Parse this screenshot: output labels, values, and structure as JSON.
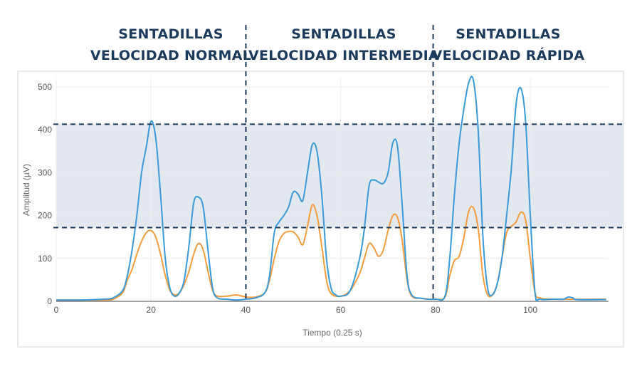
{
  "chart_data": {
    "type": "line",
    "headers": [
      [
        "SENTADILLAS",
        "VELOCIDAD NORMAL"
      ],
      [
        "SENTADILLAS",
        "VELOCIDAD INTERMEDIA"
      ],
      [
        "SENTADILLAS",
        "VELOCIDAD RÁPIDA"
      ]
    ],
    "x_label": "Tiempo (0.25 s)",
    "y_label": "Amplitud (µV)",
    "xlim": [
      0,
      116.5
    ],
    "ylim": [
      0,
      520
    ],
    "xticks": [
      0,
      20,
      40,
      60,
      80,
      100
    ],
    "yticks": [
      0,
      100,
      200,
      300,
      400,
      500
    ],
    "grid": true,
    "band": [
      172,
      413
    ],
    "band_color": "#e3e8ee",
    "dividers": [
      40,
      79.5
    ],
    "series": [
      {
        "color": "#3a9ad9",
        "x": [
          0,
          5,
          10,
          12,
          14,
          15,
          16,
          17,
          18,
          19,
          20,
          21,
          22,
          23,
          24,
          25,
          26,
          27,
          28,
          29,
          30,
          31,
          32,
          33,
          34,
          36,
          38,
          40,
          42,
          44,
          45,
          46,
          47,
          48,
          49,
          50,
          51,
          52,
          53,
          54,
          55,
          56,
          57,
          58,
          59,
          60,
          62,
          64,
          65,
          66,
          67,
          68,
          69,
          70,
          71,
          72,
          73,
          74,
          75,
          77,
          80,
          82,
          83,
          84,
          85,
          86,
          87,
          88,
          89,
          90,
          91,
          92,
          93,
          94,
          95,
          96,
          97,
          98,
          99,
          100,
          101,
          102,
          105,
          107,
          108,
          109,
          110,
          116
        ],
        "values": [
          3,
          3,
          5,
          8,
          25,
          60,
          120,
          200,
          300,
          360,
          420,
          380,
          250,
          100,
          30,
          12,
          20,
          50,
          130,
          230,
          243,
          220,
          120,
          30,
          8,
          5,
          3,
          5,
          8,
          20,
          60,
          160,
          185,
          200,
          220,
          255,
          250,
          235,
          300,
          365,
          350,
          250,
          100,
          30,
          15,
          12,
          25,
          100,
          170,
          270,
          283,
          278,
          275,
          300,
          370,
          360,
          220,
          60,
          15,
          7,
          5,
          12,
          100,
          250,
          370,
          450,
          510,
          515,
          400,
          150,
          30,
          15,
          40,
          100,
          200,
          310,
          460,
          497,
          420,
          200,
          20,
          5,
          5,
          5,
          10,
          8,
          4,
          4
        ]
      },
      {
        "color": "#f39c3d",
        "x": [
          0,
          10,
          12,
          14,
          15,
          16,
          17,
          18,
          19,
          20,
          21,
          22,
          23,
          24,
          25,
          26,
          27,
          28,
          29,
          30,
          31,
          32,
          33,
          34,
          36,
          38,
          40,
          42,
          44,
          45,
          46,
          47,
          48,
          49,
          50,
          51,
          52,
          53,
          54,
          55,
          56,
          57,
          58,
          60,
          62,
          64,
          65,
          66,
          67,
          68,
          69,
          70,
          71,
          72,
          73,
          74,
          75,
          77,
          80,
          82,
          83,
          84,
          85,
          86,
          87,
          88,
          89,
          90,
          91,
          92,
          93,
          94,
          95,
          96,
          97,
          98,
          99,
          100,
          101,
          102,
          105,
          116
        ],
        "values": [
          3,
          3,
          5,
          20,
          50,
          75,
          110,
          140,
          160,
          165,
          150,
          110,
          60,
          25,
          15,
          20,
          40,
          70,
          110,
          135,
          120,
          70,
          25,
          12,
          12,
          15,
          10,
          10,
          20,
          50,
          100,
          140,
          158,
          163,
          162,
          150,
          132,
          175,
          225,
          200,
          130,
          50,
          18,
          12,
          25,
          65,
          100,
          135,
          125,
          105,
          120,
          165,
          200,
          195,
          140,
          50,
          12,
          7,
          5,
          10,
          60,
          95,
          105,
          150,
          210,
          218,
          170,
          60,
          15,
          15,
          40,
          100,
          160,
          175,
          185,
          208,
          190,
          100,
          20,
          8,
          5,
          5
        ]
      }
    ]
  }
}
